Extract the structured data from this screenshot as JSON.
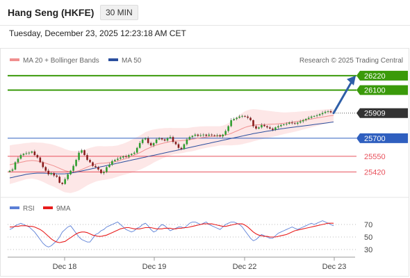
{
  "header": {
    "title": "Hang Seng (HKFE)",
    "timeframe": "30 MIN"
  },
  "datetime": "Tuesday, December 23, 2025 12:23:18 AM CET",
  "credit": "Research © 2025 Trading Central",
  "colors": {
    "support": "#e8505b",
    "resistance": "#3a9a0a",
    "pivot": "#2f5fbf",
    "last": "#333333",
    "ma50": "#2b4f9e",
    "bollinger": "#f4a5a5",
    "rsi": "#5b7fd6",
    "rsi_ma": "#e81c1c",
    "arrow": "#2f5fa8"
  },
  "chart_data": [
    {
      "type": "candlestick",
      "title": "",
      "legend": [
        {
          "name": "MA 20 + Bollinger Bands",
          "color": "#f08f8f"
        },
        {
          "name": "MA 50",
          "color": "#2b4f9e"
        }
      ],
      "legend_placement": "top-left",
      "x_ticks": [
        "Dec 18",
        "Dec 19",
        "Dec 22",
        "Dec 23"
      ],
      "ylim": [
        25220,
        26300
      ],
      "price_levels": [
        {
          "value": 26220,
          "label": "26220",
          "kind": "resistance"
        },
        {
          "value": 26100,
          "label": "26100",
          "kind": "resistance"
        },
        {
          "value": 25909,
          "label": "25909",
          "kind": "last"
        },
        {
          "value": 25700,
          "label": "25700",
          "kind": "pivot"
        },
        {
          "value": 25550,
          "label": "25550",
          "kind": "support"
        },
        {
          "value": 25420,
          "label": "25420",
          "kind": "support"
        }
      ],
      "close": [
        25430,
        25440,
        25500,
        25530,
        25560,
        25570,
        25575,
        25580,
        25590,
        25560,
        25540,
        25500,
        25460,
        25430,
        25400,
        25410,
        25390,
        25380,
        25330,
        25320,
        25360,
        25400,
        25430,
        25470,
        25520,
        25580,
        25600,
        25560,
        25520,
        25500,
        25470,
        25460,
        25440,
        25410,
        25420,
        25460,
        25480,
        25510,
        25520,
        25530,
        25540,
        25550,
        25545,
        25560,
        25570,
        25580,
        25620,
        25660,
        25690,
        25700,
        25660,
        25640,
        25660,
        25690,
        25700,
        25690,
        25680,
        25700,
        25710,
        25670,
        25650,
        25620,
        25610,
        25650,
        25690,
        25710,
        25720,
        25730,
        25720,
        25725,
        25730,
        25720,
        25730,
        25725,
        25720,
        25725,
        25715,
        25730,
        25760,
        25800,
        25850,
        25860,
        25870,
        25880,
        25885,
        25880,
        25870,
        25850,
        25800,
        25780,
        25790,
        25810,
        25800,
        25790,
        25780,
        25770,
        25790,
        25800,
        25810,
        25815,
        25820,
        25830,
        25825,
        25820,
        25830,
        25840,
        25850,
        25860,
        25870,
        25880,
        25885,
        25890,
        25900,
        25910,
        25920,
        25925,
        25915,
        25909
      ],
      "ma20": [
        25480,
        25485,
        25490,
        25495,
        25500,
        25505,
        25510,
        25512,
        25515,
        25513,
        25510,
        25505,
        25500,
        25492,
        25485,
        25478,
        25470,
        25460,
        25450,
        25440,
        25430,
        25425,
        25420,
        25422,
        25425,
        25430,
        25440,
        25450,
        25460,
        25470,
        25478,
        25485,
        25490,
        25492,
        25493,
        25495,
        25498,
        25500,
        25505,
        25510,
        25518,
        25525,
        25532,
        25540,
        25550,
        25560,
        25570,
        25580,
        25592,
        25605,
        25615,
        25625,
        25635,
        25643,
        25650,
        25656,
        25662,
        25667,
        25672,
        25675,
        25677,
        25678,
        25680,
        25682,
        25685,
        25688,
        25692,
        25696,
        25700,
        25704,
        25707,
        25710,
        25712,
        25714,
        25716,
        25718,
        25720,
        25723,
        25727,
        25733,
        25740,
        25750,
        25760,
        25770,
        25780,
        25790,
        25797,
        25803,
        25808,
        25810,
        25812,
        25813,
        25814,
        25815,
        25816,
        25817,
        25818,
        25820,
        25822,
        25824,
        25827,
        25830,
        25833,
        25836,
        25840,
        25844,
        25848,
        25852,
        25856,
        25860,
        25864,
        25868,
        25872,
        25876,
        25880,
        25884,
        25887,
        25890
      ],
      "ma50": [
        25370,
        25375,
        25380,
        25385,
        25390,
        25395,
        25400,
        25403,
        25406,
        25408,
        25410,
        25410,
        25410,
        25409,
        25408,
        25407,
        25406,
        25405,
        25404,
        25404,
        25405,
        25407,
        25410,
        25414,
        25418,
        25423,
        25428,
        25433,
        25438,
        25443,
        25448,
        25453,
        25458,
        25463,
        25468,
        25473,
        25478,
        25483,
        25488,
        25493,
        25498,
        25503,
        25508,
        25513,
        25518,
        25523,
        25528,
        25533,
        25538,
        25543,
        25548,
        25553,
        25558,
        25563,
        25568,
        25573,
        25578,
        25583,
        25588,
        25593,
        25598,
        25603,
        25608,
        25613,
        25618,
        25623,
        25628,
        25633,
        25638,
        25643,
        25648,
        25653,
        25658,
        25663,
        25668,
        25673,
        25678,
        25683,
        25688,
        25693,
        25698,
        25703,
        25708,
        25713,
        25718,
        25723,
        25728,
        25733,
        25738,
        25742,
        25746,
        25750,
        25754,
        25758,
        25762,
        25766,
        25770,
        25774,
        25778,
        25781,
        25784,
        25787,
        25790,
        25793,
        25796,
        25799,
        25802,
        25805,
        25808,
        25811,
        25814,
        25817,
        25820,
        25823,
        25826,
        25829,
        25832,
        25835
      ],
      "bb_width": [
        160,
        160,
        158,
        156,
        154,
        152,
        150,
        150,
        150,
        152,
        154,
        158,
        162,
        166,
        170,
        172,
        174,
        176,
        178,
        180,
        180,
        178,
        176,
        172,
        168,
        164,
        160,
        156,
        152,
        150,
        148,
        146,
        144,
        142,
        140,
        138,
        136,
        134,
        132,
        130,
        130,
        130,
        132,
        134,
        136,
        138,
        140,
        142,
        144,
        146,
        144,
        142,
        138,
        134,
        130,
        126,
        122,
        118,
        114,
        110,
        108,
        106,
        104,
        102,
        100,
        100,
        100,
        98,
        96,
        94,
        92,
        90,
        88,
        86,
        84,
        82,
        80,
        82,
        86,
        92,
        100,
        108,
        116,
        124,
        130,
        134,
        136,
        136,
        134,
        130,
        126,
        122,
        118,
        114,
        110,
        106,
        102,
        98,
        94,
        90,
        88,
        86,
        84,
        82,
        80,
        78,
        76,
        74,
        72,
        70,
        68,
        66,
        64,
        62,
        60,
        58,
        56,
        55
      ],
      "forecast_arrow": {
        "from": 25909,
        "to": 26220
      }
    },
    {
      "type": "line",
      "title": "",
      "legend": [
        {
          "name": "RSI",
          "color": "#5b7fd6"
        },
        {
          "name": "9MA",
          "color": "#e81c1c"
        }
      ],
      "x_ticks": [
        "Dec 18",
        "Dec 19",
        "Dec 22",
        "Dec 23"
      ],
      "y_ticks": [
        70,
        50,
        30
      ],
      "ylim": [
        20,
        90
      ],
      "series": [
        {
          "name": "RSI",
          "values": [
            62,
            64,
            68,
            70,
            72,
            70,
            68,
            66,
            62,
            58,
            52,
            46,
            40,
            36,
            34,
            36,
            40,
            44,
            50,
            58,
            62,
            66,
            68,
            62,
            56,
            50,
            46,
            44,
            42,
            42,
            48,
            54,
            56,
            60,
            62,
            66,
            68,
            70,
            72,
            74,
            70,
            66,
            62,
            60,
            58,
            60,
            64,
            66,
            70,
            72,
            68,
            62,
            58,
            60,
            66,
            70,
            68,
            64,
            60,
            62,
            64,
            66,
            66,
            64,
            68,
            72,
            74,
            74,
            72,
            70,
            72,
            74,
            70,
            68,
            66,
            64,
            62,
            66,
            70,
            72,
            74,
            74,
            72,
            70,
            66,
            60,
            54,
            48,
            44,
            46,
            50,
            54,
            52,
            50,
            48,
            48,
            52,
            56,
            58,
            60,
            62,
            64,
            66,
            64,
            62,
            64,
            66,
            68,
            70,
            72,
            70,
            72,
            74,
            76,
            74,
            72,
            70,
            68
          ]
        },
        {
          "name": "9MA",
          "values": [
            66,
            66,
            67,
            67,
            68,
            68,
            68,
            67,
            67,
            66,
            64,
            62,
            59,
            55,
            51,
            47,
            44,
            42,
            41,
            42,
            43,
            46,
            49,
            52,
            55,
            57,
            58,
            58,
            57,
            55,
            53,
            52,
            51,
            51,
            52,
            53,
            55,
            57,
            59,
            61,
            63,
            64,
            65,
            65,
            64,
            63,
            63,
            63,
            64,
            65,
            65,
            65,
            64,
            63,
            63,
            63,
            64,
            64,
            64,
            63,
            63,
            64,
            64,
            65,
            65,
            66,
            67,
            68,
            69,
            70,
            71,
            71,
            71,
            71,
            70,
            69,
            68,
            67,
            67,
            68,
            69,
            70,
            71,
            71,
            71,
            69,
            66,
            62,
            58,
            55,
            53,
            52,
            51,
            51,
            50,
            50,
            50,
            51,
            52,
            53,
            54,
            56,
            58,
            60,
            61,
            62,
            63,
            64,
            65,
            66,
            67,
            68,
            69,
            70,
            71,
            72,
            72,
            72
          ]
        }
      ]
    }
  ]
}
